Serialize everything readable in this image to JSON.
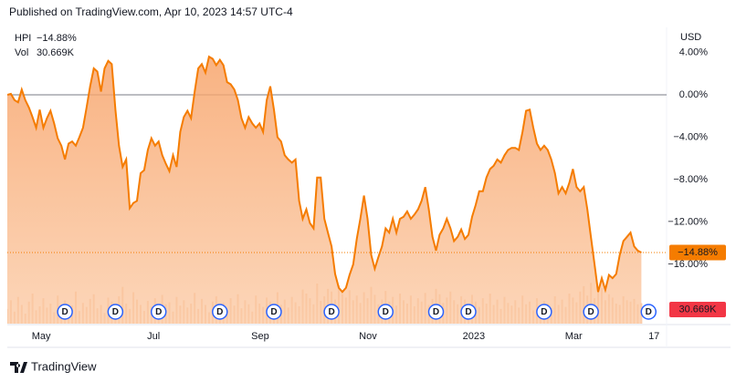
{
  "chart_data": {
    "type": "area",
    "header": "Published on TradingView.com, Apr 10, 2023 14:57 UTC-4",
    "currency": "USD",
    "brand": "TradingView",
    "series": [
      {
        "name": "HPI",
        "color": "#f57c00",
        "last_label": "−14.88%",
        "values": [
          0,
          0.1,
          -0.5,
          -0.7,
          0.5,
          -0.5,
          -1.2,
          -2.1,
          -3.1,
          -1.4,
          -3.1,
          -2.2,
          -1.5,
          -2.7,
          -4.1,
          -4.8,
          -6.1,
          -4.6,
          -4.4,
          -4.8,
          -4.0,
          -3.1,
          -1.2,
          0.8,
          2.5,
          2.2,
          0.3,
          2.5,
          3.2,
          2.9,
          -1.4,
          -4.8,
          -6.8,
          -6.1,
          -10.7,
          -10.2,
          -10.0,
          -7.4,
          -7.1,
          -5.2,
          -4.1,
          -4.8,
          -4.4,
          -5.7,
          -6.5,
          -7.2,
          -5.7,
          -6.8,
          -3.5,
          -2.1,
          -1.5,
          -2.2,
          0.3,
          2.5,
          2.9,
          2.1,
          3.6,
          3.4,
          2.8,
          3.3,
          2.8,
          1.2,
          1.0,
          0.5,
          -0.5,
          -2.2,
          -3.1,
          -2.1,
          -2.7,
          -3.1,
          -2.7,
          -3.5,
          -0.5,
          0.8,
          -1.4,
          -4.0,
          -4.4,
          -5.7,
          -6.1,
          -6.4,
          -6.1,
          -10.0,
          -11.7,
          -10.8,
          -12.1,
          -12.6,
          -7.8,
          -7.8,
          -11.7,
          -13.0,
          -14.3,
          -16.9,
          -18.2,
          -18.6,
          -18.2,
          -17.0,
          -16.0,
          -13.6,
          -11.7,
          -9.5,
          -11.7,
          -15.1,
          -16.4,
          -15.3,
          -14.3,
          -12.6,
          -13.0,
          -11.7,
          -13.0,
          -11.7,
          -11.5,
          -11.0,
          -11.7,
          -11.3,
          -10.8,
          -10.0,
          -8.7,
          -10.8,
          -13.4,
          -14.7,
          -13.2,
          -12.6,
          -11.7,
          -12.6,
          -13.8,
          -13.4,
          -12.7,
          -13.6,
          -13.2,
          -11.5,
          -10.4,
          -9.1,
          -9.1,
          -7.8,
          -7.0,
          -6.7,
          -6.1,
          -6.4,
          -5.7,
          -5.2,
          -5.0,
          -5.0,
          -5.2,
          -3.5,
          -1.5,
          -1.4,
          -3.1,
          -4.6,
          -5.2,
          -4.8,
          -5.2,
          -6.1,
          -7.4,
          -9.3,
          -8.7,
          -9.3,
          -8.3,
          -7.0,
          -8.7,
          -9.1,
          -8.7,
          -10.8,
          -13.4,
          -16.0,
          -18.6,
          -17.3,
          -18.4,
          -17.0,
          -17.3,
          -16.9,
          -15.1,
          -13.8,
          -13.4,
          -13.0,
          -14.3,
          -14.7,
          -14.88
        ]
      }
    ],
    "volume": {
      "name": "Vol",
      "color": "#f5a46c",
      "last_color": "#f23645",
      "last_label": "30.669K",
      "ylim": [
        0,
        150
      ],
      "values": [
        22,
        35,
        18,
        40,
        28,
        15,
        33,
        45,
        20,
        26,
        38,
        24,
        30,
        17,
        42,
        29,
        35,
        21,
        27,
        48,
        19,
        31,
        25,
        37,
        44,
        23,
        28,
        16,
        39,
        33,
        26,
        41,
        55,
        30,
        22,
        47,
        36,
        28,
        19,
        34,
        25,
        38,
        21,
        43,
        29,
        32,
        18,
        40,
        27,
        35,
        24,
        30,
        46,
        22,
        37,
        28,
        17,
        33,
        41,
        26,
        31,
        20,
        38,
        27,
        44,
        23,
        35,
        29,
        18,
        42,
        30,
        25,
        39,
        33,
        21,
        47,
        28,
        36,
        24,
        40,
        32,
        26,
        51,
        45,
        38,
        29,
        60,
        34,
        41,
        52,
        48,
        36,
        57,
        44,
        39,
        50,
        35,
        42,
        31,
        47,
        38,
        55,
        43,
        29,
        36,
        49,
        33,
        40,
        27,
        45,
        35,
        30,
        42,
        26,
        38,
        33,
        46,
        28,
        37,
        52,
        44,
        31,
        39,
        48,
        35,
        29,
        41,
        36,
        27,
        43,
        33,
        25,
        38,
        30,
        45,
        28,
        36,
        22,
        40,
        31,
        27,
        35,
        24,
        42,
        29,
        33,
        20,
        38,
        26,
        34,
        30,
        23,
        41,
        28,
        36,
        25,
        45,
        39,
        32,
        48,
        56,
        42,
        61,
        38,
        47,
        53,
        35,
        44,
        39,
        30,
        28,
        41,
        35,
        33,
        37,
        29,
        30.669
      ]
    },
    "xlim": [
      0,
      183
    ],
    "xticks": [
      {
        "value": 9.4,
        "label": "May"
      },
      {
        "value": 40.6,
        "label": "Jul"
      },
      {
        "value": 70.2,
        "label": "Sep"
      },
      {
        "value": 100.1,
        "label": "Nov"
      },
      {
        "value": 129.5,
        "label": "2023"
      },
      {
        "value": 157.2,
        "label": "Mar"
      },
      {
        "value": 179.5,
        "label": "17"
      }
    ],
    "ylim": [
      -21.59,
      4.82
    ],
    "yticks": [
      {
        "value": 4,
        "label": "4.00%"
      },
      {
        "value": 0,
        "label": "0.00%"
      },
      {
        "value": -4,
        "label": "−4.00%"
      },
      {
        "value": -8,
        "label": "−8.00%"
      },
      {
        "value": -12,
        "label": "−12.00%"
      },
      {
        "value": -16,
        "label": "−16.00%"
      }
    ],
    "dividends": [
      {
        "label": "D",
        "at": 16
      },
      {
        "label": "D",
        "at": 30
      },
      {
        "label": "D",
        "at": 42
      },
      {
        "label": "D",
        "at": 59
      },
      {
        "label": "D",
        "at": 74
      },
      {
        "label": "D",
        "at": 90
      },
      {
        "label": "D",
        "at": 105
      },
      {
        "label": "D",
        "at": 119
      },
      {
        "label": "D",
        "at": 128
      },
      {
        "label": "D",
        "at": 149
      },
      {
        "label": "D",
        "at": 162
      },
      {
        "label": "D",
        "at": 178
      }
    ]
  }
}
